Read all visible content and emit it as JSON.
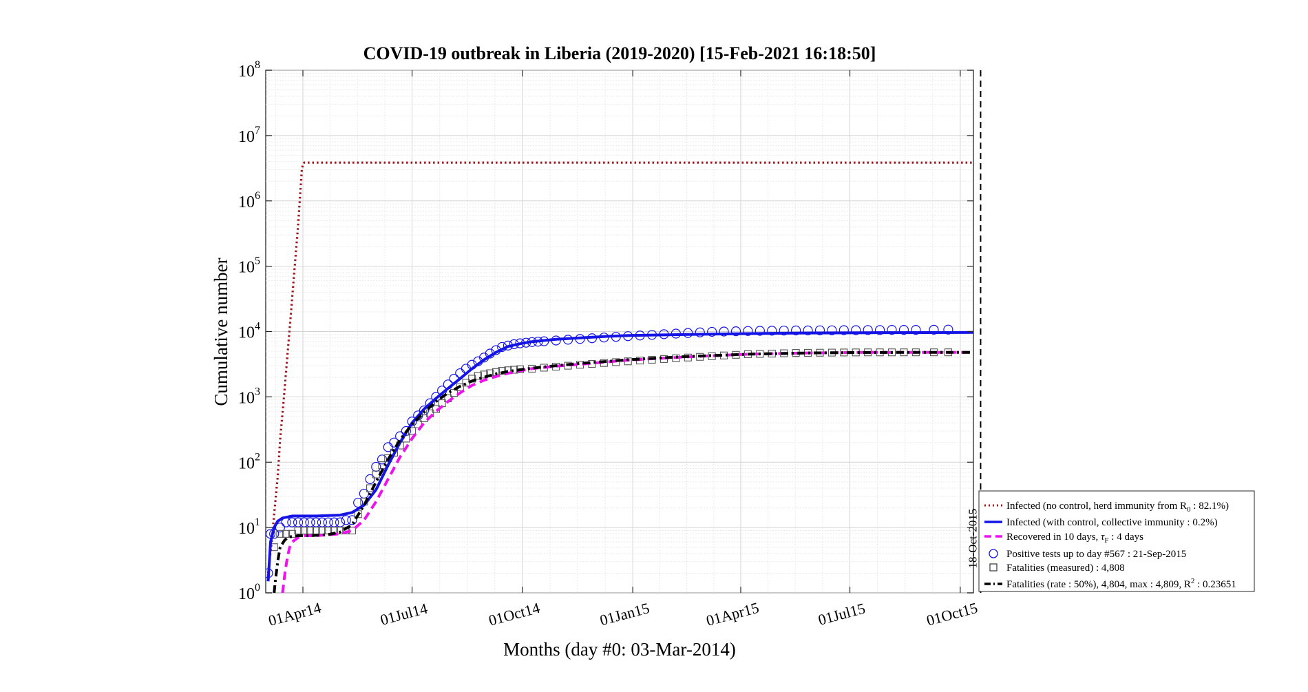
{
  "chart_data": {
    "type": "line",
    "title": "COVID-19 outbreak in Liberia (2019-2020) [15-Feb-2021 16:18:50]",
    "xlabel": "Months (day #0: 03-Mar-2014)",
    "ylabel": "Cumulative number",
    "x_axis": {
      "unit": "day",
      "range": [
        -2,
        588
      ],
      "ticks": [
        {
          "x": 29,
          "label": "01Apr14"
        },
        {
          "x": 120,
          "label": "01Jul14"
        },
        {
          "x": 212,
          "label": "01Oct14"
        },
        {
          "x": 304,
          "label": "01Jan15"
        },
        {
          "x": 394,
          "label": "01Apr15"
        },
        {
          "x": 485,
          "label": "01Jul15"
        },
        {
          "x": 577,
          "label": "01Oct15"
        }
      ]
    },
    "y_axis": {
      "scale": "log",
      "range": [
        1,
        100000000
      ],
      "ticks": [
        {
          "value": 1,
          "base": "10",
          "exp": "0"
        },
        {
          "value": 10,
          "base": "10",
          "exp": "1"
        },
        {
          "value": 100,
          "base": "10",
          "exp": "2"
        },
        {
          "value": 1000,
          "base": "10",
          "exp": "3"
        },
        {
          "value": 10000,
          "base": "10",
          "exp": "4"
        },
        {
          "value": 100000,
          "base": "10",
          "exp": "5"
        },
        {
          "value": 1000000,
          "base": "10",
          "exp": "6"
        },
        {
          "value": 10000000,
          "base": "10",
          "exp": "7"
        },
        {
          "value": 100000000,
          "base": "10",
          "exp": "8"
        }
      ]
    },
    "grid": true,
    "legend_position": "bottom-right outside",
    "vline": {
      "x": 594,
      "label": "18-Oct-2015"
    },
    "series": [
      {
        "name": "Infected (no control, herd immunity from R",
        "name_sub": "0",
        "name_tail": " : 82.1%)",
        "style": "dotted",
        "color": "#a0141e",
        "x": [
          0,
          3,
          5,
          8,
          10,
          13,
          16,
          19,
          22,
          25,
          27,
          28,
          29,
          30,
          50,
          100,
          200,
          300,
          400,
          500,
          588
        ],
        "y": [
          2,
          6,
          16,
          60,
          220,
          900,
          4200,
          19000,
          90000,
          420000,
          1500000,
          2900000,
          3700000,
          3850000,
          3850000,
          3850000,
          3850000,
          3850000,
          3850000,
          3850000,
          3850000
        ]
      },
      {
        "name": "Infected (with control, collective immunity : 0.2%)",
        "style": "solid",
        "color": "#1414e6",
        "x": [
          0,
          2,
          5,
          8,
          12,
          20,
          40,
          60,
          70,
          80,
          90,
          100,
          110,
          120,
          130,
          140,
          150,
          160,
          170,
          180,
          190,
          200,
          210,
          220,
          240,
          260,
          280,
          300,
          350,
          400,
          450,
          500,
          550,
          588
        ],
        "y": [
          1.5,
          6,
          10,
          12.5,
          14,
          15,
          15,
          15.5,
          17,
          22,
          38,
          90,
          200,
          400,
          650,
          950,
          1350,
          1900,
          2700,
          3700,
          4800,
          5900,
          6500,
          7000,
          7600,
          8000,
          8400,
          8700,
          9000,
          9300,
          9500,
          9600,
          9650,
          9700
        ]
      },
      {
        "name": "Recovered in 10 days, ",
        "name_tail": " : 4 days",
        "style": "dashed",
        "color": "#ee12ee",
        "x": [
          12,
          14,
          16,
          18,
          20,
          25,
          30,
          40,
          60,
          70,
          80,
          90,
          100,
          110,
          120,
          130,
          140,
          150,
          160,
          170,
          180,
          190,
          200,
          210,
          220,
          240,
          260,
          280,
          300,
          350,
          400,
          450,
          500,
          550,
          588
        ],
        "y": [
          1,
          2,
          3.5,
          5,
          6,
          7,
          7.5,
          7.5,
          8,
          9,
          13,
          25,
          55,
          120,
          230,
          400,
          600,
          850,
          1150,
          1500,
          1800,
          2050,
          2300,
          2500,
          2700,
          2950,
          3150,
          3400,
          3650,
          4100,
          4500,
          4700,
          4800,
          4800,
          4800
        ]
      },
      {
        "name": "Fatalities (rate : 50%), 4,804, max : 4,809, R",
        "name_sup": "2",
        "name_tail": " : 0.23651",
        "style": "dash-dot",
        "color": "#000000",
        "x": [
          5,
          6,
          8,
          10,
          14,
          18,
          25,
          35,
          50,
          60,
          70,
          80,
          90,
          100,
          110,
          120,
          130,
          140,
          150,
          160,
          170,
          180,
          190,
          200,
          210,
          220,
          240,
          260,
          280,
          300,
          350,
          400,
          450,
          500,
          550,
          588
        ],
        "y": [
          1,
          1.5,
          3,
          5,
          6.5,
          7.2,
          7.5,
          7.5,
          7.8,
          8.5,
          11,
          22,
          50,
          110,
          220,
          380,
          580,
          850,
          1150,
          1450,
          1750,
          2000,
          2250,
          2450,
          2600,
          2750,
          3000,
          3250,
          3450,
          3700,
          4150,
          4500,
          4700,
          4780,
          4800,
          4804
        ]
      },
      {
        "name": "Positive tests up to day #567 : 21-Sep-2015",
        "style": "circle-markers",
        "color": "#1414e6",
        "x": [
          0,
          2,
          5,
          10,
          15,
          20,
          25,
          30,
          35,
          40,
          45,
          50,
          55,
          60,
          65,
          70,
          75,
          80,
          85,
          90,
          95,
          100,
          105,
          110,
          115,
          120,
          125,
          130,
          135,
          140,
          145,
          150,
          155,
          160,
          165,
          170,
          175,
          180,
          185,
          190,
          195,
          200,
          205,
          210,
          215,
          220,
          225,
          230,
          240,
          250,
          260,
          270,
          280,
          290,
          300,
          310,
          320,
          330,
          340,
          350,
          360,
          370,
          380,
          390,
          400,
          410,
          420,
          430,
          440,
          450,
          460,
          470,
          480,
          490,
          500,
          510,
          520,
          530,
          540,
          555,
          567
        ],
        "y": [
          2,
          8,
          8,
          10,
          12,
          12,
          12,
          12,
          12,
          12,
          12,
          12,
          12,
          12,
          13,
          13,
          24,
          33,
          55,
          85,
          110,
          170,
          200,
          250,
          300,
          420,
          520,
          620,
          800,
          1000,
          1250,
          1550,
          1900,
          2300,
          2700,
          3100,
          3500,
          4000,
          4600,
          5200,
          5800,
          6100,
          6400,
          6600,
          6750,
          6900,
          7000,
          7100,
          7300,
          7500,
          7700,
          7900,
          8100,
          8300,
          8500,
          8700,
          8900,
          9100,
          9300,
          9500,
          9700,
          9900,
          10000,
          10100,
          10200,
          10250,
          10300,
          10350,
          10400,
          10400,
          10450,
          10450,
          10500,
          10500,
          10550,
          10550,
          10600,
          10600,
          10600,
          10650,
          10700
        ]
      },
      {
        "name": "Fatalities (measured) : 4,808",
        "style": "square-markers",
        "color": "#555555",
        "x": [
          5,
          10,
          15,
          20,
          25,
          30,
          35,
          40,
          45,
          50,
          55,
          60,
          65,
          70,
          75,
          80,
          85,
          90,
          95,
          100,
          105,
          110,
          115,
          120,
          125,
          130,
          135,
          140,
          145,
          150,
          155,
          160,
          165,
          170,
          175,
          180,
          185,
          190,
          195,
          200,
          205,
          210,
          220,
          230,
          240,
          250,
          260,
          270,
          280,
          290,
          300,
          310,
          320,
          330,
          340,
          350,
          360,
          370,
          380,
          390,
          400,
          410,
          420,
          430,
          440,
          450,
          460,
          470,
          480,
          490,
          500,
          510,
          520,
          530,
          540,
          555,
          567
        ],
        "y": [
          5,
          8,
          8,
          8,
          9,
          9,
          9,
          9,
          9,
          9,
          9,
          9,
          9,
          9,
          16,
          25,
          40,
          65,
          90,
          115,
          140,
          180,
          230,
          300,
          380,
          470,
          560,
          650,
          800,
          950,
          1150,
          1400,
          1650,
          1900,
          2100,
          2200,
          2300,
          2400,
          2500,
          2550,
          2600,
          2650,
          2700,
          2800,
          2900,
          3000,
          3100,
          3200,
          3300,
          3400,
          3500,
          3600,
          3700,
          3800,
          3900,
          4000,
          4100,
          4200,
          4300,
          4400,
          4500,
          4550,
          4600,
          4650,
          4700,
          4720,
          4740,
          4760,
          4780,
          4790,
          4800,
          4800,
          4800,
          4805,
          4806,
          4807,
          4808
        ]
      }
    ]
  }
}
